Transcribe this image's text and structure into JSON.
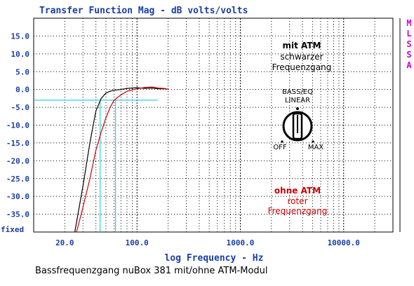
{
  "chart_data": {
    "type": "line",
    "title": "Transfer Function Mag - dB volts/volts",
    "xlabel": "log Frequency - Hz",
    "ylabel": "",
    "x_scale": "log",
    "xlim": [
      10,
      30000
    ],
    "ylim": [
      -40,
      20
    ],
    "x_ticks": [
      {
        "value": 20,
        "label": "20.0"
      },
      {
        "value": 100,
        "label": "100.0"
      },
      {
        "value": 1000,
        "label": "1000.0"
      },
      {
        "value": 10000,
        "label": "10000.0"
      }
    ],
    "y_ticks": [
      {
        "value": 15,
        "label": "15.0"
      },
      {
        "value": 10,
        "label": "10.0"
      },
      {
        "value": 5,
        "label": "5.0"
      },
      {
        "value": 0,
        "label": "0.0"
      },
      {
        "value": -5,
        "label": "-5.0"
      },
      {
        "value": -10,
        "label": "-10.0"
      },
      {
        "value": -15,
        "label": "-15.0"
      },
      {
        "value": -20,
        "label": "-20.0"
      },
      {
        "value": -25,
        "label": "-25.0"
      },
      {
        "value": -30,
        "label": "-30.0"
      },
      {
        "value": -35,
        "label": "-35.0"
      }
    ],
    "y_axis_extra_label": "fixed",
    "side_label": [
      "M",
      "L",
      "S",
      "S",
      "A"
    ],
    "grid": true,
    "series": [
      {
        "color": "#000000",
        "x": [
          25,
          30,
          35,
          40,
          45,
          50,
          55,
          60,
          70,
          80,
          100,
          120,
          140,
          160,
          180,
          200
        ],
        "y": [
          -40,
          -27,
          -15,
          -6,
          -2.5,
          -1,
          -0.5,
          -0.2,
          0,
          0.3,
          0.5,
          0.3,
          0.4,
          0.2,
          0.2,
          0.1
        ]
      },
      {
        "color": "#cc0000",
        "x": [
          26,
          30,
          35,
          40,
          45,
          50,
          55,
          60,
          70,
          80,
          100,
          120,
          140,
          160,
          180,
          200
        ],
        "y": [
          -40,
          -33,
          -25,
          -17,
          -12,
          -8,
          -5,
          -3,
          -1.5,
          -0.5,
          0.2,
          0.6,
          0.7,
          0.4,
          0.3,
          0.1
        ]
      }
    ],
    "reference_lines": [
      {
        "type": "horizontal",
        "y": -3,
        "x_from": 10,
        "x_to": 160,
        "color": "#00c8d0"
      },
      {
        "type": "vertical",
        "x": 44,
        "y_from": -40,
        "y_to": -3,
        "color": "#00c8d0"
      },
      {
        "type": "vertical",
        "x": 62,
        "y_from": -40,
        "y_to": -3,
        "color": "#00c8d0"
      }
    ],
    "annotations": {
      "mit_title": "mit ATM",
      "mit_line1": "schwarzer",
      "mit_line2": "Frequenzgang",
      "knob_line1": "BASS/EQ",
      "knob_line2": "LINEAR",
      "knob_off": "OFF",
      "knob_max": "MAX",
      "ohne_title": "ohne ATM",
      "ohne_line1": "roter",
      "ohne_line2": "Frequenzgang"
    }
  },
  "caption": "Bassfrequenzgang nuBox 381 mit/ohne ATM-Modul",
  "colors": {
    "title": "#1a3ea8",
    "tick_label": "#1a3ea8",
    "side_label": "#cc00cc",
    "ohne_label": "#cc0000",
    "reference": "#00c8d0"
  }
}
